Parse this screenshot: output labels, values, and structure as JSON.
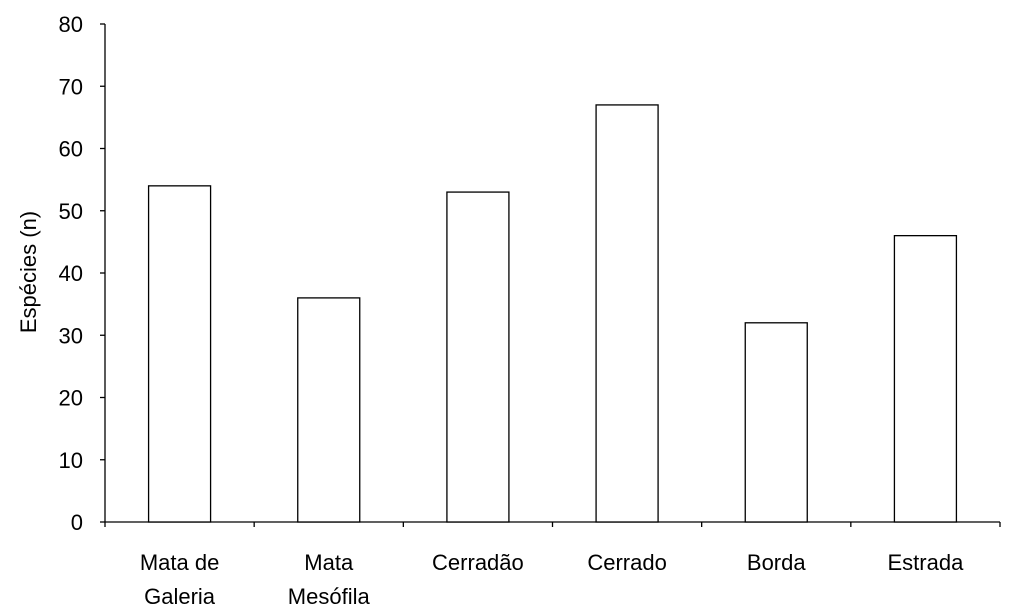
{
  "chart_data": {
    "type": "bar",
    "title": "",
    "xlabel": "",
    "ylabel": "Espécies (n)",
    "ylim": [
      0,
      80
    ],
    "yticks": [
      "0",
      "10",
      "20",
      "30",
      "40",
      "50",
      "60",
      "70",
      "80"
    ],
    "categories": [
      [
        "Mata de",
        "Galeria"
      ],
      [
        "Mata",
        "Mesófila"
      ],
      [
        "Cerradão"
      ],
      [
        "Cerrado"
      ],
      [
        "Borda"
      ],
      [
        "Estrada"
      ]
    ],
    "values": [
      54,
      36,
      53,
      67,
      32,
      46
    ],
    "grid": false,
    "legend": "none",
    "bar_color": "#ffffff",
    "edge_color": "#000000"
  }
}
